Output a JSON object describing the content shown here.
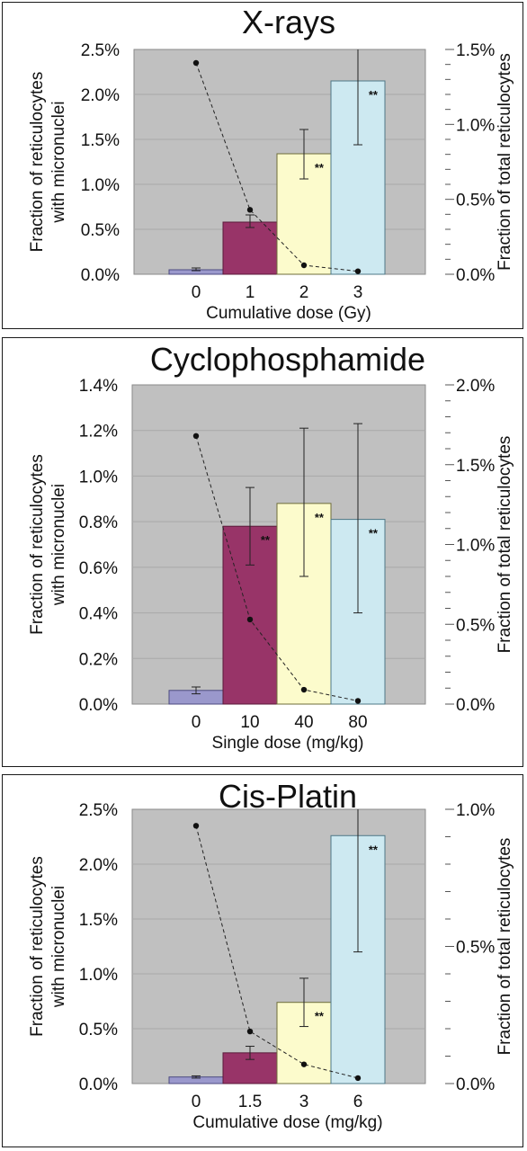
{
  "chart_data": [
    {
      "type": "bar",
      "title": "X-rays",
      "xlabel": "Cumulative dose (Gy)",
      "ylabel": "Fraction of reticulocytes with micronuclei",
      "ylabel_lines": [
        "Fraction of reticulocytes",
        "with micronuclei"
      ],
      "y2label": "Fraction of total reticulocytes",
      "categories": [
        "0",
        "1",
        "2",
        "3"
      ],
      "ylim": [
        0,
        2.5
      ],
      "yticks": [
        "0.0%",
        "0.5%",
        "1.0%",
        "1.5%",
        "2.0%",
        "2.5%"
      ],
      "y2lim": [
        0,
        1.5
      ],
      "y2ticks": [
        "0.0%",
        "0.5%",
        "1.0%",
        "1.5%"
      ],
      "series": [
        {
          "type": "bar",
          "values": [
            0.05,
            0.58,
            1.34,
            2.15
          ],
          "error_low": [
            0.04,
            0.52,
            1.06,
            1.44
          ],
          "error_high": [
            0.07,
            0.66,
            1.61,
            2.5
          ],
          "significance": [
            "",
            "",
            "**",
            "**"
          ],
          "colors": [
            "#9a98cc",
            "#983468",
            "#fcfbcc",
            "#cde9f1"
          ]
        },
        {
          "type": "line",
          "axis": "right",
          "style": "dashed",
          "values": [
            1.41,
            0.43,
            0.06,
            0.02
          ]
        }
      ]
    },
    {
      "type": "bar",
      "title": "Cyclophosphamide",
      "xlabel": "Single dose (mg/kg)",
      "ylabel": "Fraction of reticulocytes with micronuclei",
      "ylabel_lines": [
        "Fraction of reticulocytes",
        "with micronuclei"
      ],
      "y2label": "Fraction of total reticulocytes",
      "categories": [
        "0",
        "10",
        "40",
        "80"
      ],
      "ylim": [
        0,
        1.4
      ],
      "yticks": [
        "0.0%",
        "0.2%",
        "0.4%",
        "0.6%",
        "0.8%",
        "1.0%",
        "1.2%",
        "1.4%"
      ],
      "y2lim": [
        0,
        2.0
      ],
      "y2ticks": [
        "0.0%",
        "0.5%",
        "1.0%",
        "1.5%",
        "2.0%"
      ],
      "series": [
        {
          "type": "bar",
          "values": [
            0.06,
            0.78,
            0.88,
            0.81
          ],
          "error_low": [
            0.045,
            0.61,
            0.56,
            0.4
          ],
          "error_high": [
            0.075,
            0.95,
            1.21,
            1.23
          ],
          "significance": [
            "",
            "**",
            "**",
            "**"
          ],
          "colors": [
            "#9a98cc",
            "#983468",
            "#fcfbcc",
            "#cde9f1"
          ]
        },
        {
          "type": "line",
          "axis": "right",
          "style": "dashed",
          "values": [
            1.68,
            0.53,
            0.09,
            0.02
          ]
        }
      ]
    },
    {
      "type": "bar",
      "title": "Cis-Platin",
      "xlabel": "Cumulative dose (mg/kg)",
      "ylabel": "Fraction of reticulocytes with micronuclei",
      "ylabel_lines": [
        "Fraction of reticulocytes",
        "with micronuclei"
      ],
      "y2label": "Fraction of total reticulocytes",
      "categories": [
        "0",
        "1.5",
        "3",
        "6"
      ],
      "ylim": [
        0,
        2.5
      ],
      "yticks": [
        "0.0%",
        "0.5%",
        "1.0%",
        "1.5%",
        "2.0%",
        "2.5%"
      ],
      "y2lim": [
        0,
        1.0
      ],
      "y2ticks": [
        "0.0%",
        "0.5%",
        "1.0%"
      ],
      "series": [
        {
          "type": "bar",
          "values": [
            0.06,
            0.28,
            0.74,
            2.26
          ],
          "error_low": [
            0.05,
            0.22,
            0.52,
            1.2
          ],
          "error_high": [
            0.07,
            0.34,
            0.96,
            2.5
          ],
          "significance": [
            "",
            "",
            "**",
            "**"
          ],
          "colors": [
            "#9a98cc",
            "#983468",
            "#fcfbcc",
            "#cde9f1"
          ]
        },
        {
          "type": "line",
          "axis": "right",
          "style": "dashed",
          "values": [
            0.94,
            0.19,
            0.07,
            0.02
          ]
        }
      ]
    }
  ]
}
